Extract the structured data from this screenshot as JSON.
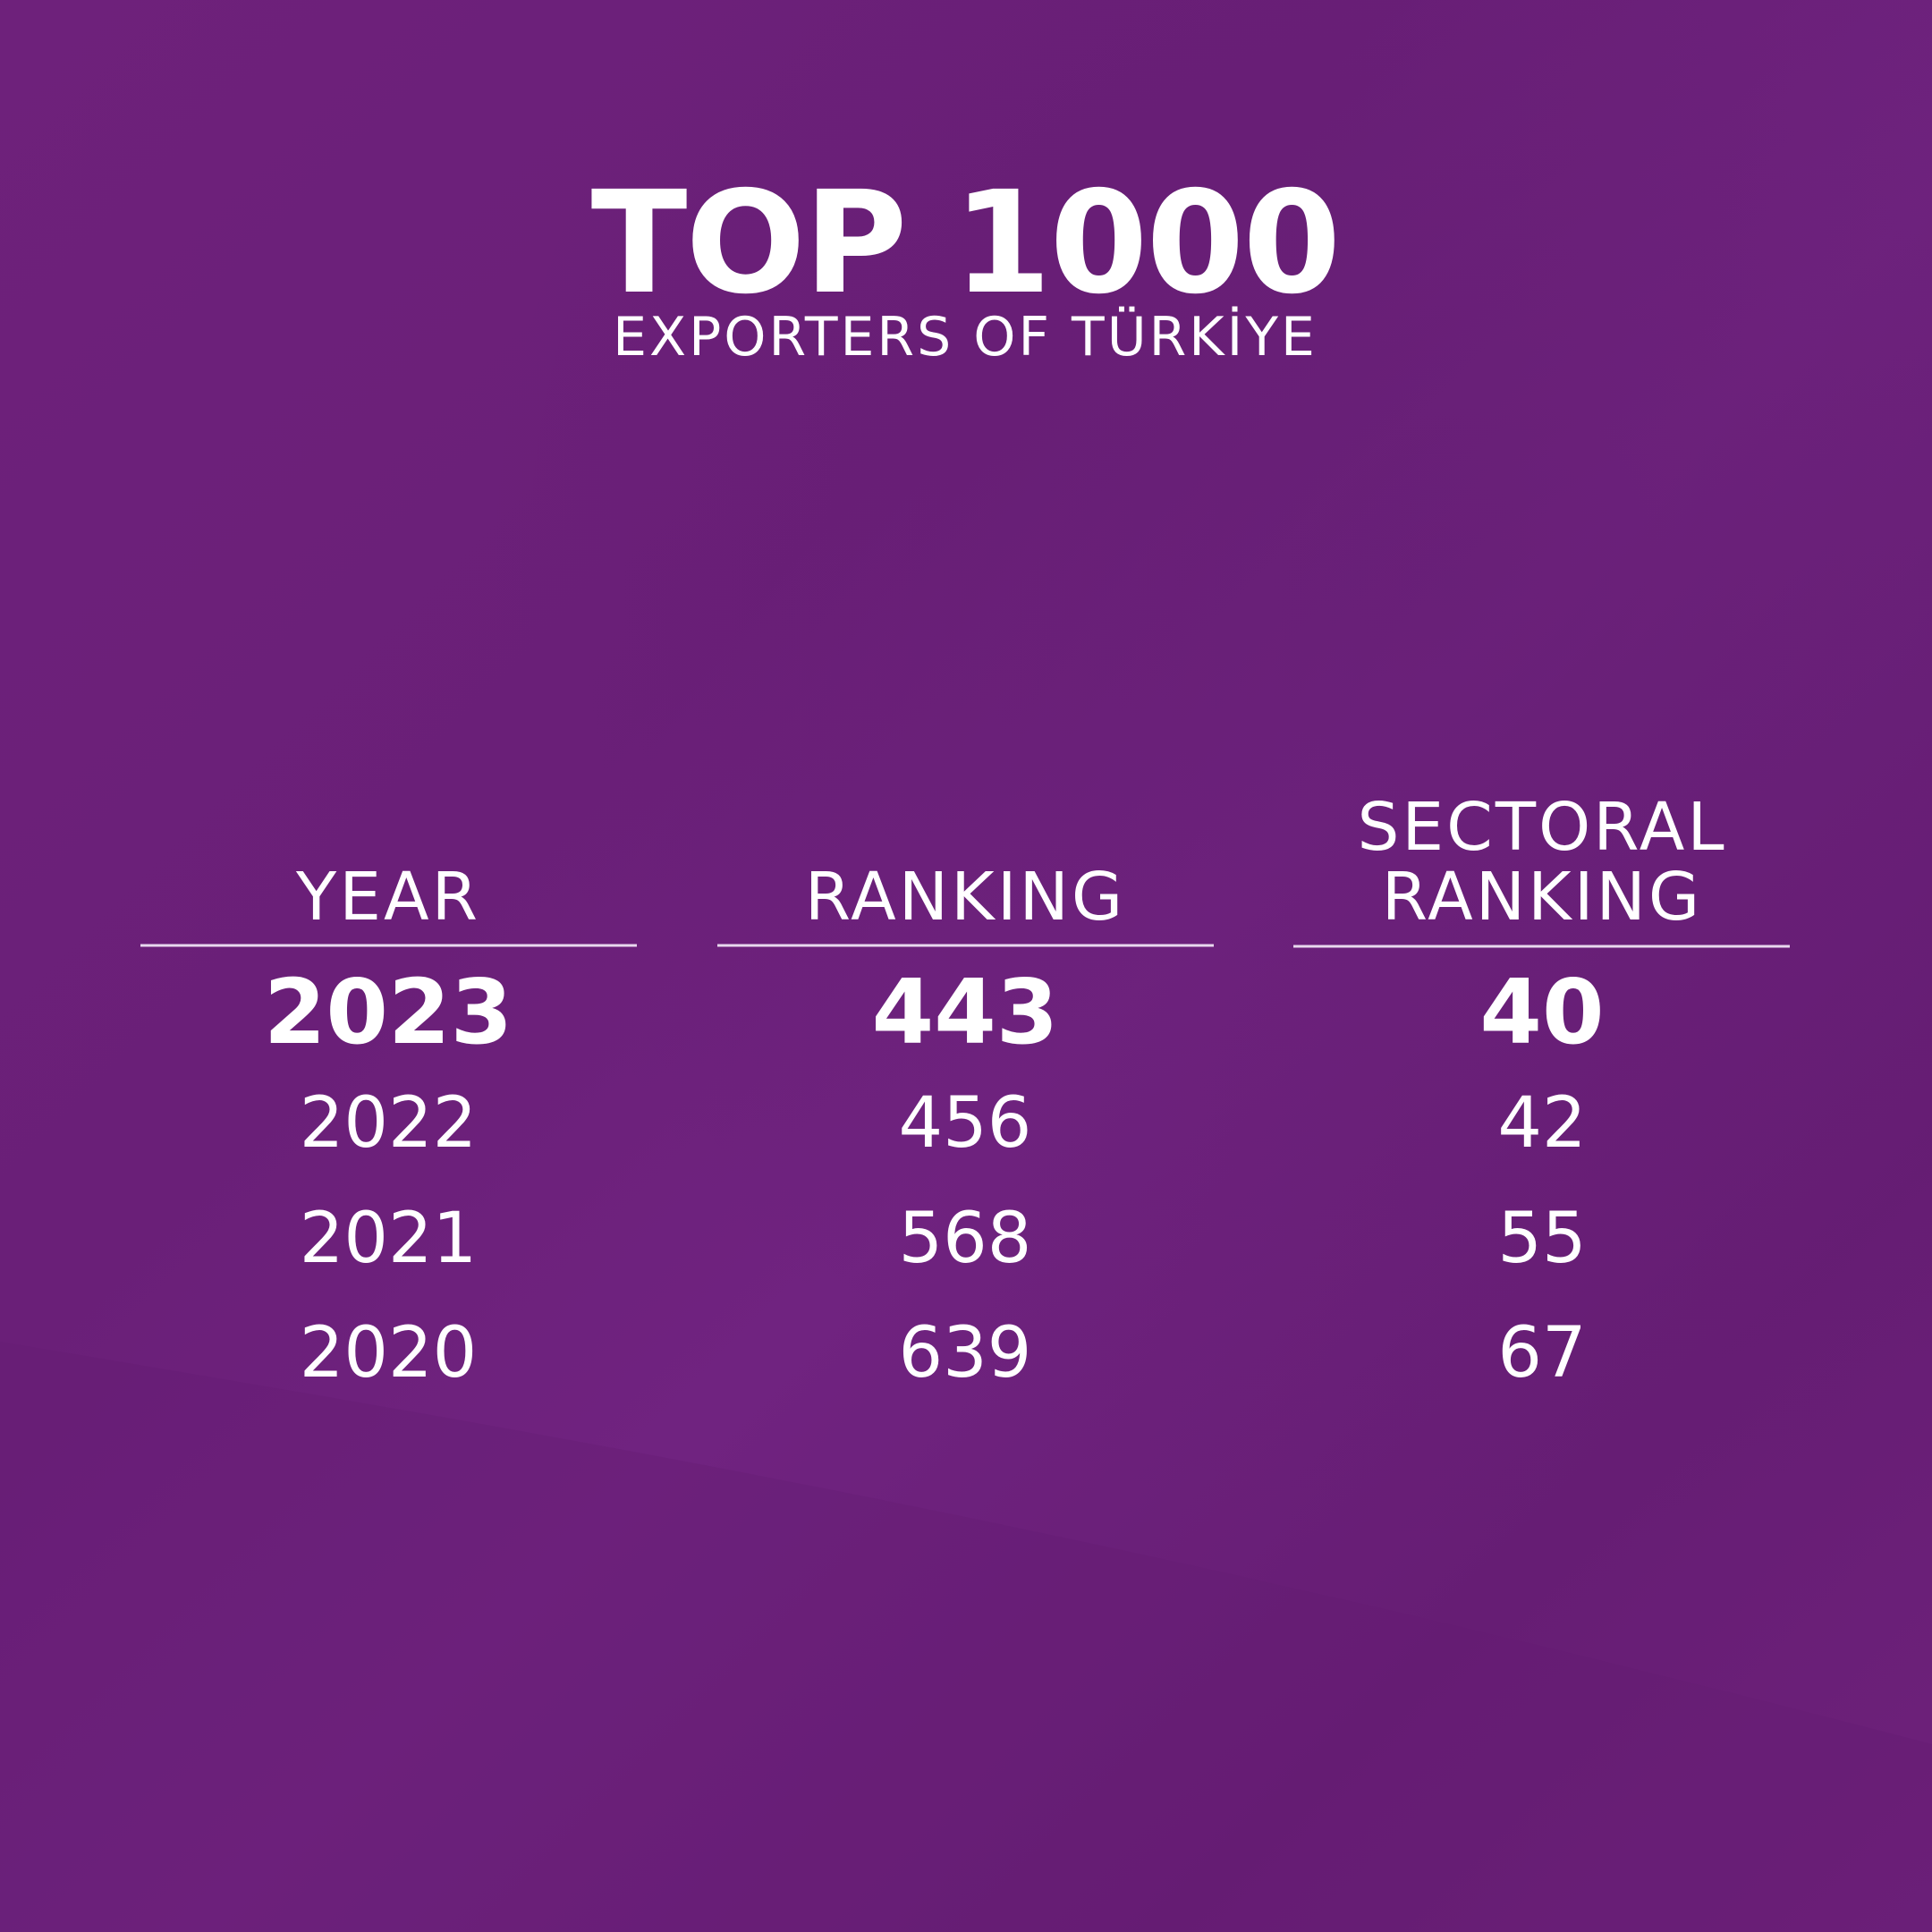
{
  "header": {
    "title": "TOP 1000",
    "subtitle": "EXPORTERS OF TÜRKİYE"
  },
  "table": {
    "columns": [
      "YEAR",
      "RANKING",
      "SECTORAL RANKING"
    ],
    "rows": [
      [
        "2023",
        "443",
        "40"
      ],
      [
        "2022",
        "456",
        "42"
      ],
      [
        "2021",
        "568",
        "55"
      ],
      [
        "2020",
        "639",
        "67"
      ]
    ]
  }
}
